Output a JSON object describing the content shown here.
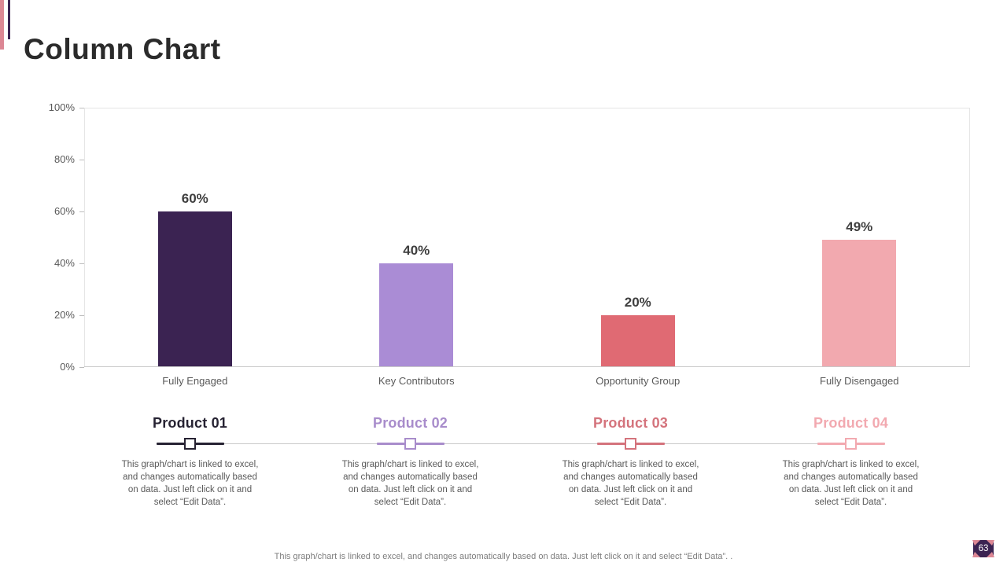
{
  "slide": {
    "title": "Column Chart",
    "page_number": "63",
    "footer_note": "This graph/chart is linked to excel,  and changes automatically based on data. Just left click on it and select “Edit Data”. .",
    "accent_colors": {
      "pink": "#dc8794",
      "purple": "#3b2352"
    }
  },
  "chart_data": {
    "type": "bar",
    "title": "Column Chart",
    "categories": [
      "Fully Engaged",
      "Key Contributors",
      "Opportunity Group",
      "Fully Disengaged"
    ],
    "values": [
      60,
      40,
      20,
      49
    ],
    "value_labels": [
      "60%",
      "40%",
      "20%",
      "49%"
    ],
    "bar_colors": [
      "#3b2352",
      "#aa8cd5",
      "#e06a73",
      "#f2a9af"
    ],
    "xlabel": "",
    "ylabel": "",
    "ylim": [
      0,
      100
    ],
    "ytick_labels": [
      "0%",
      "20%",
      "40%",
      "60%",
      "80%",
      "100%"
    ],
    "grid": false,
    "legend_position": "none"
  },
  "products": [
    {
      "name": "Product 01",
      "color": "#262232",
      "description_lines": [
        "This graph/chart is linked to excel,",
        "and changes automatically based",
        "on data. Just left click on it and",
        "select “Edit Data”."
      ]
    },
    {
      "name": "Product 02",
      "color": "#a88ccb",
      "description_lines": [
        "This graph/chart is linked to excel,",
        "and changes automatically based",
        "on data. Just left click on it and",
        "select “Edit Data”."
      ]
    },
    {
      "name": "Product 03",
      "color": "#d4737c",
      "description_lines": [
        "This graph/chart is linked to excel,",
        "and changes automatically based",
        "on data. Just left click on it and",
        "select “Edit Data”."
      ]
    },
    {
      "name": "Product 04",
      "color": "#f2a9b0",
      "description_lines": [
        "This graph/chart is linked to excel,",
        "and changes automatically based",
        "on data. Just left click on it and",
        "select “Edit Data”."
      ]
    }
  ]
}
